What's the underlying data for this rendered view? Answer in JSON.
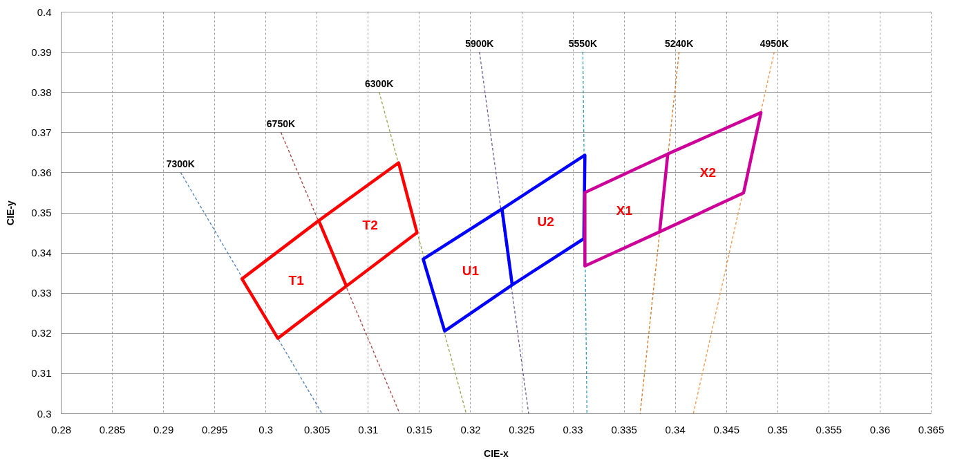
{
  "chart_data": {
    "type": "line",
    "xlabel": "CIE-x",
    "ylabel": "CIE-y",
    "xlim": [
      0.28,
      0.365
    ],
    "xticks": [
      0.28,
      0.285,
      0.29,
      0.295,
      0.3,
      0.305,
      0.31,
      0.315,
      0.32,
      0.325,
      0.33,
      0.335,
      0.34,
      0.345,
      0.35,
      0.355,
      0.36,
      0.365
    ],
    "ylim": [
      0.3,
      0.4
    ],
    "yticks": [
      0.3,
      0.31,
      0.32,
      0.33,
      0.34,
      0.35,
      0.36,
      0.37,
      0.38,
      0.39,
      0.4
    ],
    "grid": true,
    "series": [
      {
        "name": "7300K",
        "color": "#4a7ebb",
        "line_style": "dashed",
        "x": [
          0.2917,
          0.3055
        ],
        "values": [
          0.36,
          0.3
        ]
      },
      {
        "name": "6750K",
        "color": "#a8423f",
        "line_style": "dashed",
        "x": [
          0.3015,
          0.3131
        ],
        "values": [
          0.37,
          0.3
        ]
      },
      {
        "name": "6300K",
        "color": "#8ea84a",
        "line_style": "dashed",
        "x": [
          0.3111,
          0.3196
        ],
        "values": [
          0.38,
          0.3
        ]
      },
      {
        "name": "5900K",
        "color": "#6f5a96",
        "line_style": "dashed",
        "x": [
          0.3209,
          0.3257
        ],
        "values": [
          0.39,
          0.3
        ]
      },
      {
        "name": "5550K",
        "color": "#2f9fb3",
        "line_style": "dashed",
        "x": [
          0.331,
          0.3314
        ],
        "values": [
          0.39,
          0.3
        ]
      },
      {
        "name": "5240K",
        "color": "#d8731f",
        "line_style": "dashed",
        "x": [
          0.3404,
          0.3366
        ],
        "values": [
          0.39,
          0.3
        ]
      },
      {
        "name": "4950K",
        "color": "#f79646",
        "line_style": "dashed",
        "x": [
          0.3497,
          0.3418
        ],
        "values": [
          0.39,
          0.3
        ]
      },
      {
        "color": "#ff0000",
        "line_style": "solid",
        "x": [
          0.3079,
          0.3012,
          0.2977,
          0.3052,
          0.3079,
          0.3148,
          0.313,
          0.3052
        ],
        "values": [
          0.3317,
          0.3187,
          0.3335,
          0.348,
          0.3317,
          0.345,
          0.3624,
          0.348
        ]
      },
      {
        "color": "#0000ff",
        "line_style": "solid",
        "x": [
          0.3241,
          0.3175,
          0.3154,
          0.3231,
          0.3241,
          0.3311,
          0.3312,
          0.3231
        ],
        "values": [
          0.332,
          0.3205,
          0.3384,
          0.3509,
          0.332,
          0.3435,
          0.3643,
          0.3509
        ]
      },
      {
        "color": "#cc0099",
        "line_style": "solid",
        "x": [
          0.3385,
          0.3312,
          0.3312,
          0.3393,
          0.3385,
          0.3467,
          0.3484,
          0.3393
        ],
        "values": [
          0.3452,
          0.3367,
          0.355,
          0.3646,
          0.3452,
          0.3549,
          0.3749,
          0.3646
        ]
      }
    ],
    "annotations": [
      "T1",
      "T2",
      "U1",
      "U2",
      "X1",
      "X2"
    ]
  }
}
